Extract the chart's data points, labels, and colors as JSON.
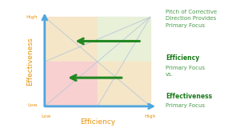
{
  "bg_color": "#ffffff",
  "quadrant_colors": {
    "top_left": "#f5e6c8",
    "top_right": "#e8f0d8",
    "bottom_left": "#f8d0d0",
    "bottom_right": "#f5e6c8"
  },
  "axis_color": "#4da6e0",
  "arrow_color": "#228822",
  "xlabel": "Efficiency",
  "ylabel": "Effectiveness",
  "xlabel_low": "Low",
  "xlabel_high": "High",
  "ylabel_low": "Low",
  "ylabel_high": "High",
  "axis_label_color": "#e8920a",
  "title_text": "Pitch of Corrective\nDirection Provides\nPrimary Focus",
  "legend_line1_bold": "Efficiency",
  "legend_line1_rest": "Primary Focus\nvs.",
  "legend_line2_bold": "Effectiveness",
  "legend_line2_rest": "Primary Focus",
  "text_color_normal": "#4a9a4a",
  "text_color_bold": "#1a7a1a",
  "diagonal_color": "#b8c8d8"
}
